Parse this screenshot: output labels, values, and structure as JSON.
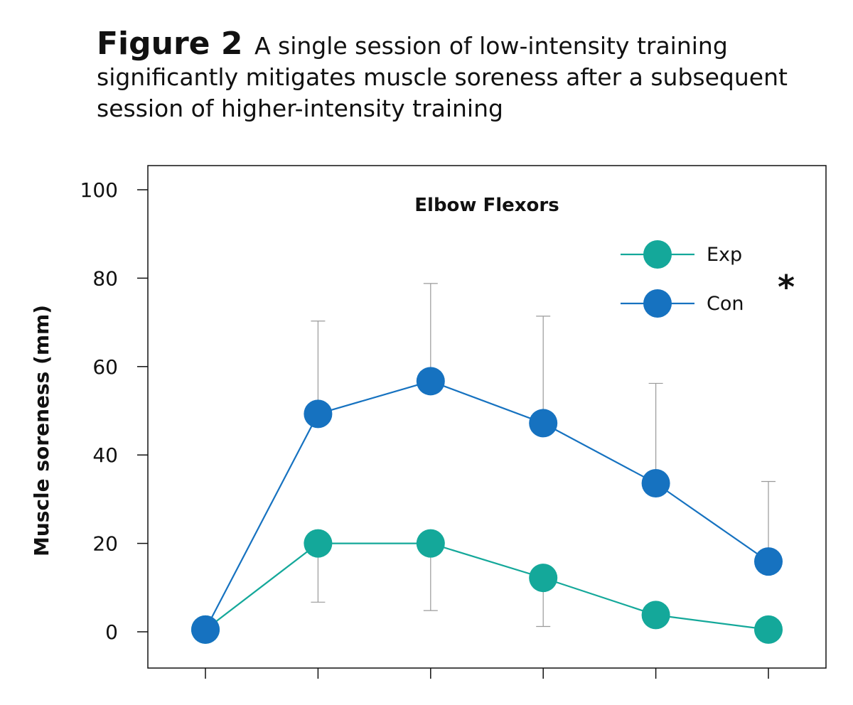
{
  "caption": {
    "figure_label": "Figure 2",
    "text": "A single session of low-intensity training significantly mitigates muscle soreness after a subsequent session of higher-intensity training"
  },
  "chart_data": {
    "type": "line",
    "title": "Elbow Flexors",
    "xlabel": "",
    "ylabel": "Muscle soreness (mm)",
    "ylim": [
      -8,
      105
    ],
    "yticks": [
      0,
      20,
      40,
      60,
      80,
      100
    ],
    "x": [
      1,
      2,
      3,
      4,
      5,
      6
    ],
    "series": [
      {
        "name": "Exp",
        "color": "#14a89a",
        "values": [
          0.5,
          20,
          20,
          12.2,
          3.8,
          0.5
        ],
        "error_low": [
          null,
          6.7,
          4.8,
          1.2,
          null,
          null
        ],
        "error_high": [
          null,
          null,
          null,
          null,
          null,
          null
        ]
      },
      {
        "name": "Con",
        "color": "#1672c0",
        "values": [
          0.5,
          49.3,
          56.7,
          47.2,
          33.6,
          15.9
        ],
        "error_low": [
          null,
          null,
          null,
          null,
          null,
          null
        ],
        "error_high": [
          null,
          70.3,
          78.8,
          71.4,
          56.2,
          34
        ]
      }
    ],
    "legend_position": "top-right",
    "significance_marker": "*",
    "grid": false
  }
}
